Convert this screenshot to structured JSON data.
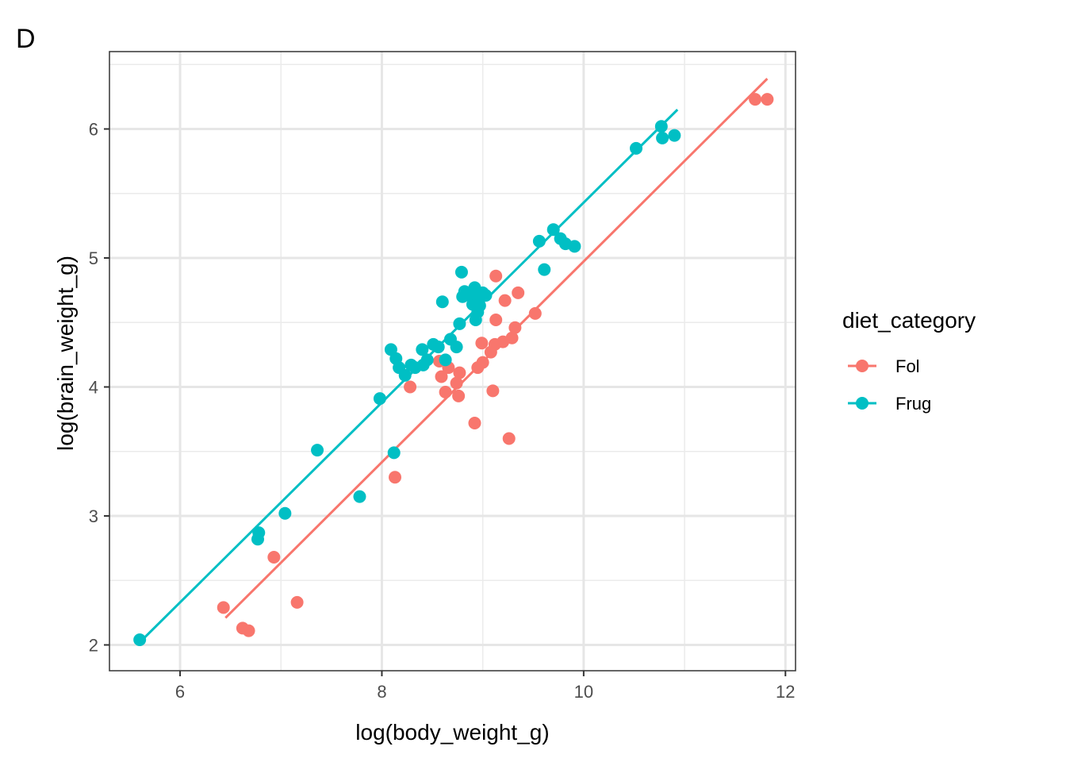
{
  "panel_tag": "D",
  "chart_data": {
    "type": "scatter",
    "title": "",
    "xlabel": "log(body_weight_g)",
    "ylabel": "log(brain_weight_g)",
    "xlim": [
      5.3,
      12.1
    ],
    "ylim": [
      1.8,
      6.6
    ],
    "x_ticks": [
      6,
      8,
      10,
      12
    ],
    "y_ticks": [
      2,
      3,
      4,
      5,
      6
    ],
    "x_tick_labels": [
      "6",
      "8",
      "10",
      "12"
    ],
    "y_tick_labels": [
      "2",
      "3",
      "4",
      "5",
      "6"
    ],
    "grid": true,
    "legend": {
      "title": "diet_category",
      "placement": "right",
      "entries": [
        "Fol",
        "Frug"
      ]
    },
    "series": [
      {
        "name": "Fol",
        "color": "#F8766D",
        "fit_line": {
          "x": [
            6.45,
            11.82
          ],
          "y": [
            2.21,
            6.39
          ]
        },
        "points": [
          [
            6.43,
            2.29
          ],
          [
            6.62,
            2.13
          ],
          [
            6.68,
            2.11
          ],
          [
            6.93,
            2.68
          ],
          [
            7.16,
            2.33
          ],
          [
            8.13,
            3.3
          ],
          [
            8.28,
            4.0
          ],
          [
            8.57,
            4.2
          ],
          [
            8.59,
            4.08
          ],
          [
            8.63,
            3.96
          ],
          [
            8.66,
            4.15
          ],
          [
            8.74,
            4.03
          ],
          [
            8.76,
            3.93
          ],
          [
            8.77,
            4.11
          ],
          [
            8.92,
            3.72
          ],
          [
            8.95,
            4.15
          ],
          [
            8.99,
            4.34
          ],
          [
            9.0,
            4.19
          ],
          [
            9.08,
            4.27
          ],
          [
            9.1,
            3.97
          ],
          [
            9.12,
            4.33
          ],
          [
            9.13,
            4.52
          ],
          [
            9.13,
            4.86
          ],
          [
            9.2,
            4.35
          ],
          [
            9.22,
            4.67
          ],
          [
            9.26,
            3.6
          ],
          [
            9.29,
            4.38
          ],
          [
            9.32,
            4.46
          ],
          [
            9.35,
            4.73
          ],
          [
            9.52,
            4.57
          ],
          [
            11.7,
            6.23
          ],
          [
            11.82,
            6.23
          ]
        ]
      },
      {
        "name": "Frug",
        "color": "#00BFC4",
        "fit_line": {
          "x": [
            5.6,
            10.93
          ],
          "y": [
            2.02,
            6.15
          ]
        },
        "points": [
          [
            5.6,
            2.04
          ],
          [
            6.77,
            2.82
          ],
          [
            6.78,
            2.87
          ],
          [
            7.04,
            3.02
          ],
          [
            7.36,
            3.51
          ],
          [
            7.78,
            3.15
          ],
          [
            7.98,
            3.91
          ],
          [
            8.09,
            4.29
          ],
          [
            8.12,
            3.49
          ],
          [
            8.14,
            4.22
          ],
          [
            8.17,
            4.15
          ],
          [
            8.23,
            4.09
          ],
          [
            8.29,
            4.17
          ],
          [
            8.33,
            4.15
          ],
          [
            8.4,
            4.29
          ],
          [
            8.41,
            4.17
          ],
          [
            8.45,
            4.21
          ],
          [
            8.51,
            4.33
          ],
          [
            8.56,
            4.31
          ],
          [
            8.6,
            4.66
          ],
          [
            8.63,
            4.21
          ],
          [
            8.68,
            4.37
          ],
          [
            8.74,
            4.31
          ],
          [
            8.77,
            4.49
          ],
          [
            8.79,
            4.89
          ],
          [
            8.8,
            4.7
          ],
          [
            8.82,
            4.74
          ],
          [
            8.87,
            4.71
          ],
          [
            8.9,
            4.64
          ],
          [
            8.92,
            4.77
          ],
          [
            8.93,
            4.52
          ],
          [
            8.95,
            4.58
          ],
          [
            8.96,
            4.68
          ],
          [
            8.97,
            4.63
          ],
          [
            9.0,
            4.73
          ],
          [
            9.03,
            4.71
          ],
          [
            9.56,
            5.13
          ],
          [
            9.61,
            4.91
          ],
          [
            9.7,
            5.22
          ],
          [
            9.77,
            5.15
          ],
          [
            9.82,
            5.11
          ],
          [
            9.91,
            5.09
          ],
          [
            10.52,
            5.85
          ],
          [
            10.77,
            6.02
          ],
          [
            10.78,
            5.93
          ],
          [
            10.9,
            5.95
          ]
        ]
      }
    ]
  }
}
